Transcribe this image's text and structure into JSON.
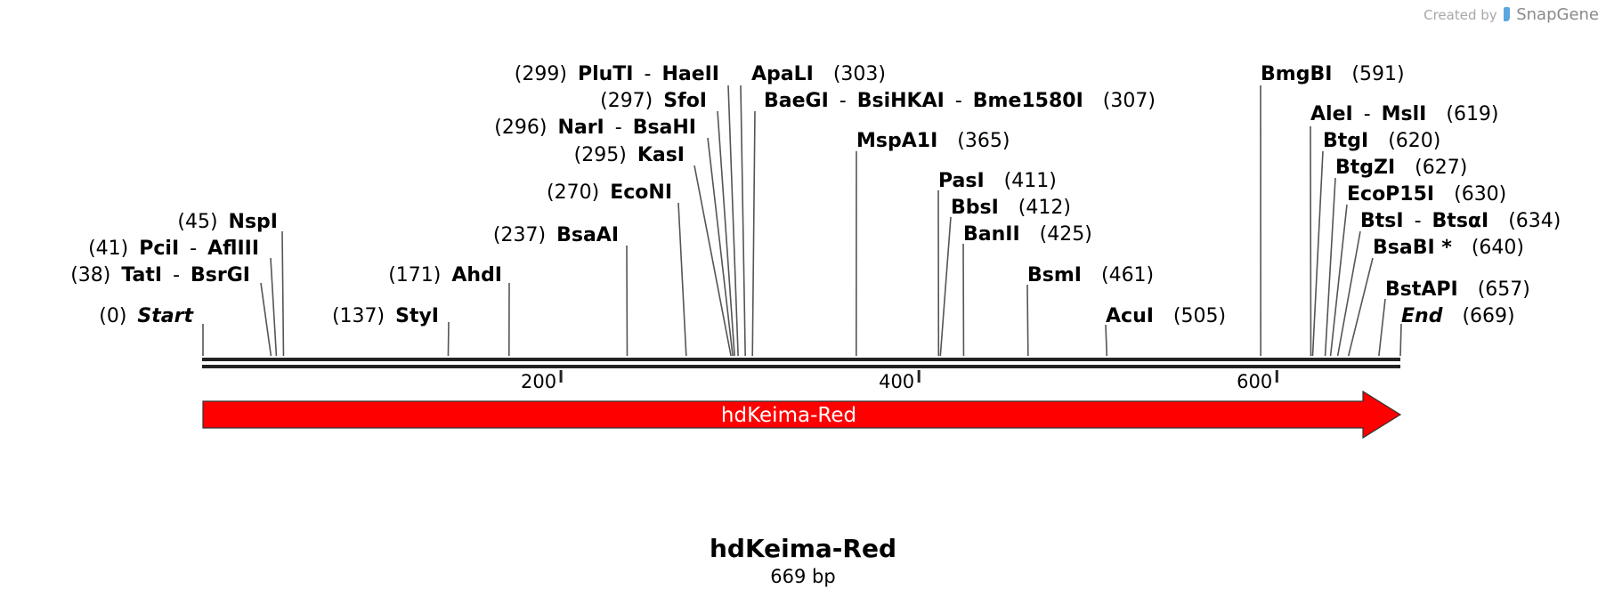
{
  "credit": {
    "created_by": "Created by",
    "brand": "SnapGene"
  },
  "sequence": {
    "name": "hdKeima-Red",
    "length_label": "669 bp",
    "length": 669
  },
  "axis": {
    "ticks": [
      200,
      400,
      600
    ]
  },
  "feature": {
    "label": "hdKeima-Red",
    "start": 0,
    "end": 669,
    "direction": "forward",
    "color": "#ff0000"
  },
  "sites": [
    {
      "pos": 0,
      "label": [
        "(0)",
        "Start"
      ],
      "style": "italic"
    },
    {
      "pos": 38,
      "label": [
        "(38)",
        "TatI",
        "-",
        "BsrGI"
      ]
    },
    {
      "pos": 41,
      "label": [
        "(41)",
        "PciI",
        "-",
        "AflIII"
      ]
    },
    {
      "pos": 45,
      "label": [
        "(45)",
        "NspI"
      ]
    },
    {
      "pos": 137,
      "label": [
        "(137)",
        "StyI"
      ]
    },
    {
      "pos": 171,
      "label": [
        "(171)",
        "AhdI"
      ]
    },
    {
      "pos": 237,
      "label": [
        "(237)",
        "BsaAI"
      ]
    },
    {
      "pos": 270,
      "label": [
        "(270)",
        "EcoNI"
      ]
    },
    {
      "pos": 295,
      "label": [
        "(295)",
        "KasI"
      ]
    },
    {
      "pos": 296,
      "label": [
        "(296)",
        "NarI",
        "-",
        "BsaHI"
      ]
    },
    {
      "pos": 297,
      "label": [
        "(297)",
        "SfoI"
      ]
    },
    {
      "pos": 299,
      "label": [
        "(299)",
        "PluTI",
        "-",
        "HaeII"
      ]
    },
    {
      "pos": 303,
      "label": [
        "ApaLI",
        "(303)"
      ]
    },
    {
      "pos": 307,
      "label": [
        "BaeGI",
        "-",
        "BsiHKAI",
        "-",
        "Bme1580I",
        "(307)"
      ]
    },
    {
      "pos": 365,
      "label": [
        "MspA1I",
        "(365)"
      ]
    },
    {
      "pos": 411,
      "label": [
        "PasI",
        "(411)"
      ]
    },
    {
      "pos": 412,
      "label": [
        "BbsI",
        "(412)"
      ]
    },
    {
      "pos": 425,
      "label": [
        "BanII",
        "(425)"
      ]
    },
    {
      "pos": 461,
      "label": [
        "BsmI",
        "(461)"
      ]
    },
    {
      "pos": 505,
      "label": [
        "AcuI",
        "(505)"
      ]
    },
    {
      "pos": 591,
      "label": [
        "BmgBI",
        "(591)"
      ]
    },
    {
      "pos": 619,
      "label": [
        "AleI",
        "-",
        "MslI",
        "(619)"
      ]
    },
    {
      "pos": 620,
      "label": [
        "BtgI",
        "(620)"
      ]
    },
    {
      "pos": 627,
      "label": [
        "BtgZI",
        "(627)"
      ]
    },
    {
      "pos": 630,
      "label": [
        "EcoP15I",
        "(630)"
      ]
    },
    {
      "pos": 634,
      "label": [
        "BtsI",
        "-",
        "BtsαI",
        "(634)"
      ]
    },
    {
      "pos": 640,
      "label": [
        "BsaBI *",
        "(640)"
      ]
    },
    {
      "pos": 657,
      "label": [
        "BstAPI",
        "(657)"
      ]
    },
    {
      "pos": 669,
      "label": [
        "End",
        "(669)"
      ],
      "style": "italic"
    }
  ]
}
